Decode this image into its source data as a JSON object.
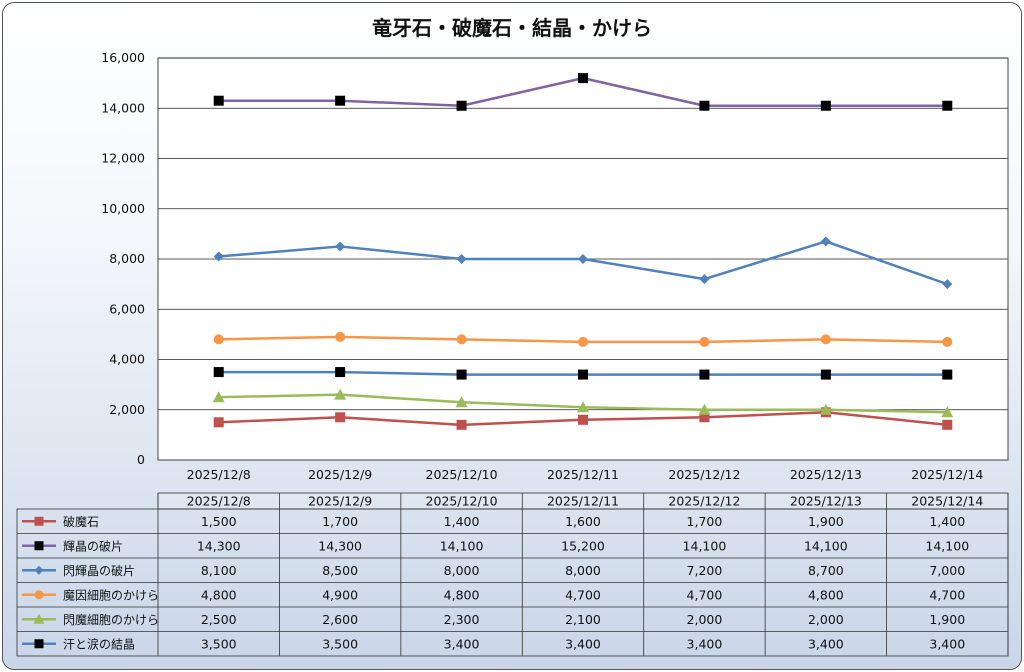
{
  "chart_data": {
    "type": "line",
    "title": "竜牙石・破魔石・結晶・かけら",
    "categories": [
      "2025/12/8",
      "2025/12/9",
      "2025/12/10",
      "2025/12/11",
      "2025/12/12",
      "2025/12/13",
      "2025/12/14"
    ],
    "ylim": [
      0,
      16000
    ],
    "yticks": [
      "0",
      "2,000",
      "4,000",
      "6,000",
      "8,000",
      "10,000",
      "12,000",
      "14,000",
      "16,000"
    ],
    "grid": true,
    "legend": "data-table",
    "series": [
      {
        "name": "破魔石",
        "color": "#c0504d",
        "marker": "square",
        "values": [
          1500,
          1700,
          1400,
          1600,
          1700,
          1900,
          1400
        ],
        "labels": [
          "1,500",
          "1,700",
          "1,400",
          "1,600",
          "1,700",
          "1,900",
          "1,400"
        ]
      },
      {
        "name": "輝晶の破片",
        "color": "#8064a2",
        "marker": "black-square",
        "values": [
          14300,
          14300,
          14100,
          15200,
          14100,
          14100,
          14100
        ],
        "labels": [
          "14,300",
          "14,300",
          "14,100",
          "15,200",
          "14,100",
          "14,100",
          "14,100"
        ]
      },
      {
        "name": "閃輝晶の破片",
        "color": "#4f81bd",
        "marker": "diamond",
        "values": [
          8100,
          8500,
          8000,
          8000,
          7200,
          8700,
          7000
        ],
        "labels": [
          "8,100",
          "8,500",
          "8,000",
          "8,000",
          "7,200",
          "8,700",
          "7,000"
        ]
      },
      {
        "name": "魔因細胞のかけら",
        "color": "#f79646",
        "marker": "circle",
        "values": [
          4800,
          4900,
          4800,
          4700,
          4700,
          4800,
          4700
        ],
        "labels": [
          "4,800",
          "4,900",
          "4,800",
          "4,700",
          "4,700",
          "4,800",
          "4,700"
        ]
      },
      {
        "name": "閃魔細胞のかけら",
        "color": "#9bbb59",
        "marker": "triangle",
        "values": [
          2500,
          2600,
          2300,
          2100,
          2000,
          2000,
          1900
        ],
        "labels": [
          "2,500",
          "2,600",
          "2,300",
          "2,100",
          "2,000",
          "2,000",
          "1,900"
        ]
      },
      {
        "name": "汗と涙の結晶",
        "color": "#4f81bd",
        "marker": "black-square",
        "values": [
          3500,
          3500,
          3400,
          3400,
          3400,
          3400,
          3400
        ],
        "labels": [
          "3,500",
          "3,500",
          "3,400",
          "3,400",
          "3,400",
          "3,400",
          "3,400"
        ]
      }
    ]
  }
}
